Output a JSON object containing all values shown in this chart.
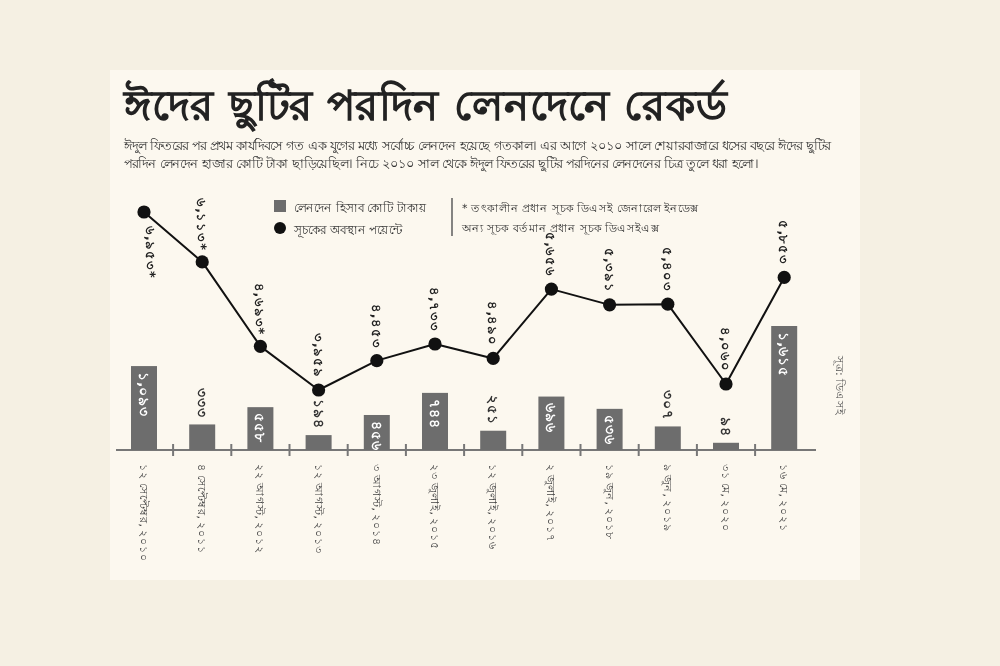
{
  "chart_data": {
    "type": "bar",
    "title": "ঈদের ছুটির পরদিন লেনদেনে রেকর্ড",
    "subtitle": "ঈদুল ফিতরের পর প্রথম কার্যদিবসে গত এক যুগের মধ্যে সর্বোচ্চ লেনদেন হয়েছে গতকাল। এর আগে ২০১০ সালে শেয়ারবাজারে ধসের বছরে ঈদের ছুটির পরদিন লেনদেন হাজার কোটি টাকা ছাড়িয়েছিল। নিচে ২০১০ সাল থেকে ঈদুল ফিতরের ছুটির পরদিনের লেনদেনের চিত্র তুলে ধরা হলো।",
    "categories": [
      "১২ সেপ্টেম্বর, ২০১০",
      "৪ সেপ্টেম্বর, ২০১১",
      "২২ আগস্ট, ২০১২",
      "১২ আগস্ট, ২০১৩",
      "৩ আগস্ট, ২০১৪",
      "২৩ জুলাই, ২০১৫",
      "১২ জুলাই, ২০১৬",
      "২ জুলাই, ২০১৭",
      "১৯ জুন, ২০১৮",
      "৯ জুন, ২০১৯",
      "৩১ মে, ২০২০",
      "১৬ মে, ২০২১"
    ],
    "series": [
      {
        "name": "লেনদেন হিসাব কোটি টাকায়",
        "color": "#6d6d6d",
        "values": [
          1093,
          333,
          558,
          194,
          456,
          744,
          251,
          696,
          536,
          307,
          94,
          1615
        ],
        "value_labels": [
          "১,০৯৩",
          "৩৩৩",
          "৫৫৮",
          "১৯৪",
          "৪৫৬",
          "৭৪৪",
          "২৫১",
          "৬৯৬",
          "৫৩৬",
          "৩০৭",
          "৯৪",
          "১,৬১৫"
        ]
      },
      {
        "name": "সূচকের অবস্থান পয়েন্টে",
        "type": "line",
        "axis": "y2",
        "color": "#111111",
        "values": [
          6953,
          6113,
          4693,
          3959,
          4453,
          4733,
          4490,
          5656,
          5391,
          5403,
          4060,
          5853
        ],
        "value_labels": [
          "৬,৯৫৩*",
          "৬,১১৩*",
          "৪,৬৯৩*",
          "৩,৯৫৯",
          "৪,৪৫৩",
          "৪,৭৩৩",
          "৪,৪৯০",
          "৫,৬৫৬",
          "৫,৩৯১",
          "৫,৪০৩",
          "৪,০৬০",
          "৫,৮৫৩"
        ]
      }
    ],
    "tick_labels": "x",
    "marker": "circle",
    "legend": "top",
    "annotations": [
      "* তৎকালীন প্রধান সূচক ডিএসই জেনারেল ইনডেক্স",
      "অন্য সূচক বর্তমান প্রধান সূচক ডিএসইএক্স",
      "সূত্র: ডিএসই"
    ]
  }
}
